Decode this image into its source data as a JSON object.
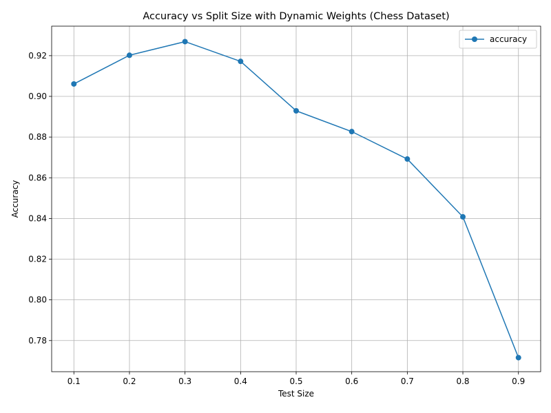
{
  "chart_data": {
    "type": "line",
    "title": "Accuracy vs Split Size with Dynamic Weights (Chess Dataset)",
    "xlabel": "Test Size",
    "ylabel": "Accuracy",
    "xlim": [
      0.06,
      0.94
    ],
    "ylim": [
      0.7647,
      0.9345
    ],
    "x_ticks": [
      0.1,
      0.2,
      0.3,
      0.4,
      0.5,
      0.6,
      0.7,
      0.8,
      0.9
    ],
    "x_tick_labels": [
      "0.1",
      "0.2",
      "0.3",
      "0.4",
      "0.5",
      "0.6",
      "0.7",
      "0.8",
      "0.9"
    ],
    "y_ticks": [
      0.78,
      0.8,
      0.82,
      0.84,
      0.86,
      0.88,
      0.9,
      0.92
    ],
    "y_tick_labels": [
      "0.78",
      "0.80",
      "0.82",
      "0.84",
      "0.86",
      "0.88",
      "0.90",
      "0.92"
    ],
    "grid": true,
    "legend_position": "top-right",
    "series": [
      {
        "name": "accuracy",
        "color": "#1f77b4",
        "marker": "circle",
        "x": [
          0.1,
          0.2,
          0.3,
          0.4,
          0.5,
          0.6,
          0.7,
          0.8,
          0.9
        ],
        "y": [
          0.9061,
          0.9202,
          0.9269,
          0.9172,
          0.8929,
          0.8827,
          0.8692,
          0.8408,
          0.7716
        ]
      }
    ]
  }
}
